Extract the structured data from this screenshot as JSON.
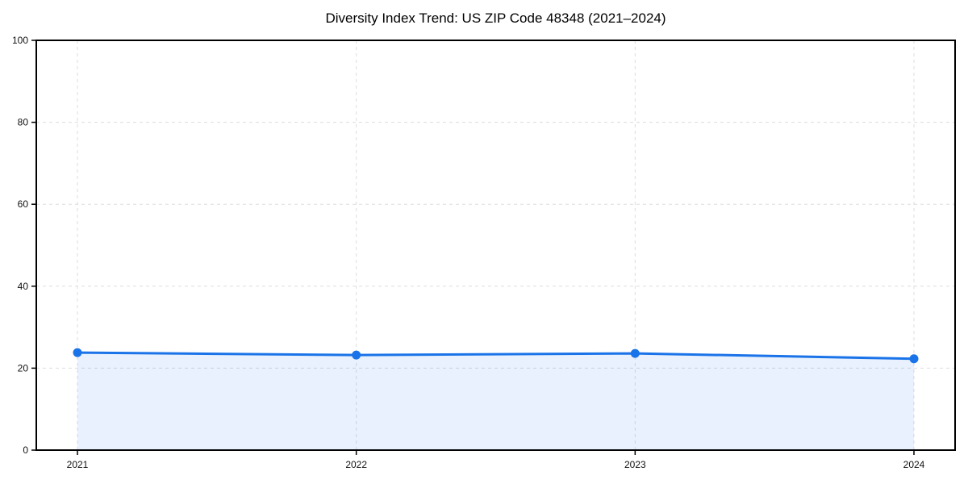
{
  "chart_data": {
    "type": "line",
    "title": "Diversity Index Trend: US ZIP Code 48348 (2021–2024)",
    "x": [
      "2021",
      "2022",
      "2023",
      "2024"
    ],
    "series": [
      {
        "name": "Diversity Index",
        "values": [
          23.8,
          23.2,
          23.6,
          22.3
        ]
      }
    ],
    "xlabel": "",
    "ylabel": "",
    "ylim": [
      0,
      100
    ],
    "yticks": [
      0,
      20,
      40,
      60,
      80,
      100
    ],
    "grid": "dashed, both axes, light gray",
    "legend": "none",
    "area_fill": true,
    "colors": {
      "line": "#1a73e8",
      "marker": "#1a73e8",
      "fill": "rgba(26,115,232,0.10)",
      "grid": "#dddddd",
      "axis": "#000000",
      "background": "#ffffff",
      "text": "#111111"
    }
  }
}
